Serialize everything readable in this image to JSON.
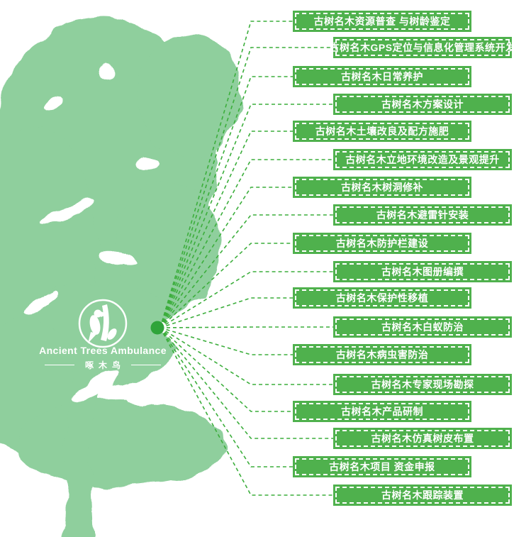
{
  "logo": {
    "name": "Ancient Trees Ambulance",
    "subtitle": "啄木鸟"
  },
  "services": [
    {
      "label": "古树名木资源普查 与树龄鉴定"
    },
    {
      "label": "古树名木GPS定位与信息化管理系统开发"
    },
    {
      "label": "古树名木日常养护"
    },
    {
      "label": "古树名木方案设计"
    },
    {
      "label": "古树名木土壤改良及配方施肥"
    },
    {
      "label": "古树名木立地环境改造及景观提升"
    },
    {
      "label": "古树名木树洞修补"
    },
    {
      "label": "古树名木避雷针安装"
    },
    {
      "label": "古树名木防护栏建设"
    },
    {
      "label": "古树名木图册编撰"
    },
    {
      "label": "古树名木保护性移植"
    },
    {
      "label": "古树名木白蚁防治"
    },
    {
      "label": "古树名木病虫害防治"
    },
    {
      "label": "古树名木专家现场勘探"
    },
    {
      "label": "古树名木产品研制"
    },
    {
      "label": "古树名木仿真树皮布置"
    },
    {
      "label": "古树名木项目 资金申报"
    },
    {
      "label": "古树名木跟踪装置"
    }
  ],
  "colors": {
    "banner_green": "#4fb14d",
    "tree_green": "#8fcf9d",
    "connector_green": "#3cae3c",
    "hub_dot_green": "#2fa43a",
    "text_white": "#ffffff"
  }
}
